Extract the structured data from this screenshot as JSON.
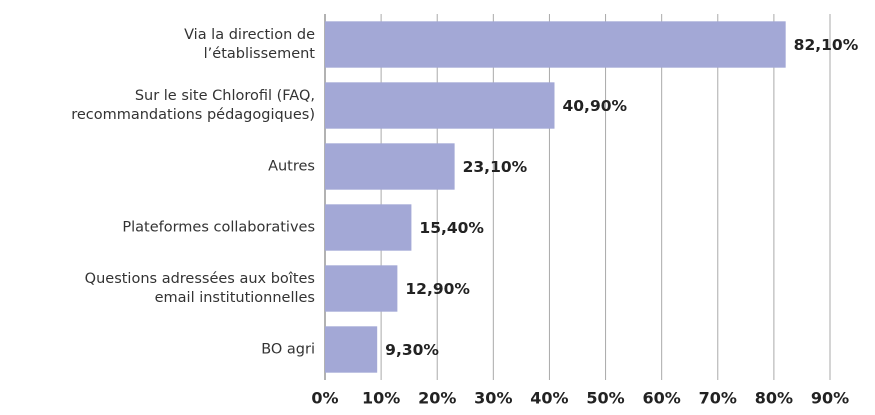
{
  "chart_data": {
    "type": "bar",
    "orientation": "horizontal",
    "categories": [
      "Via la direction de\nl’établissement",
      "Sur le site Chlorofil (FAQ,\nrecommandations pédagogiques)",
      "Autres",
      "Plateformes collaboratives",
      "Questions adressées aux boîtes\nemail institutionnelles",
      "BO agri"
    ],
    "values": [
      82.1,
      40.9,
      23.1,
      15.4,
      12.9,
      9.3
    ],
    "value_labels": [
      "82,10%",
      "40,90%",
      "23,10%",
      "15,40%",
      "12,90%",
      "9,30%"
    ],
    "color": "#a3a8d6",
    "xlim": [
      0,
      90
    ],
    "xticks": [
      {
        "value": 0,
        "label": "0%"
      },
      {
        "value": 10,
        "label": "10%"
      },
      {
        "value": 20,
        "label": "20%"
      },
      {
        "value": 30,
        "label": "30%"
      },
      {
        "value": 40,
        "label": "40%"
      },
      {
        "value": 50,
        "label": "50%"
      },
      {
        "value": 60,
        "label": "60%"
      },
      {
        "value": 70,
        "label": "70%"
      },
      {
        "value": 80,
        "label": "80%"
      },
      {
        "value": 90,
        "label": "90%"
      }
    ],
    "grid": true
  }
}
